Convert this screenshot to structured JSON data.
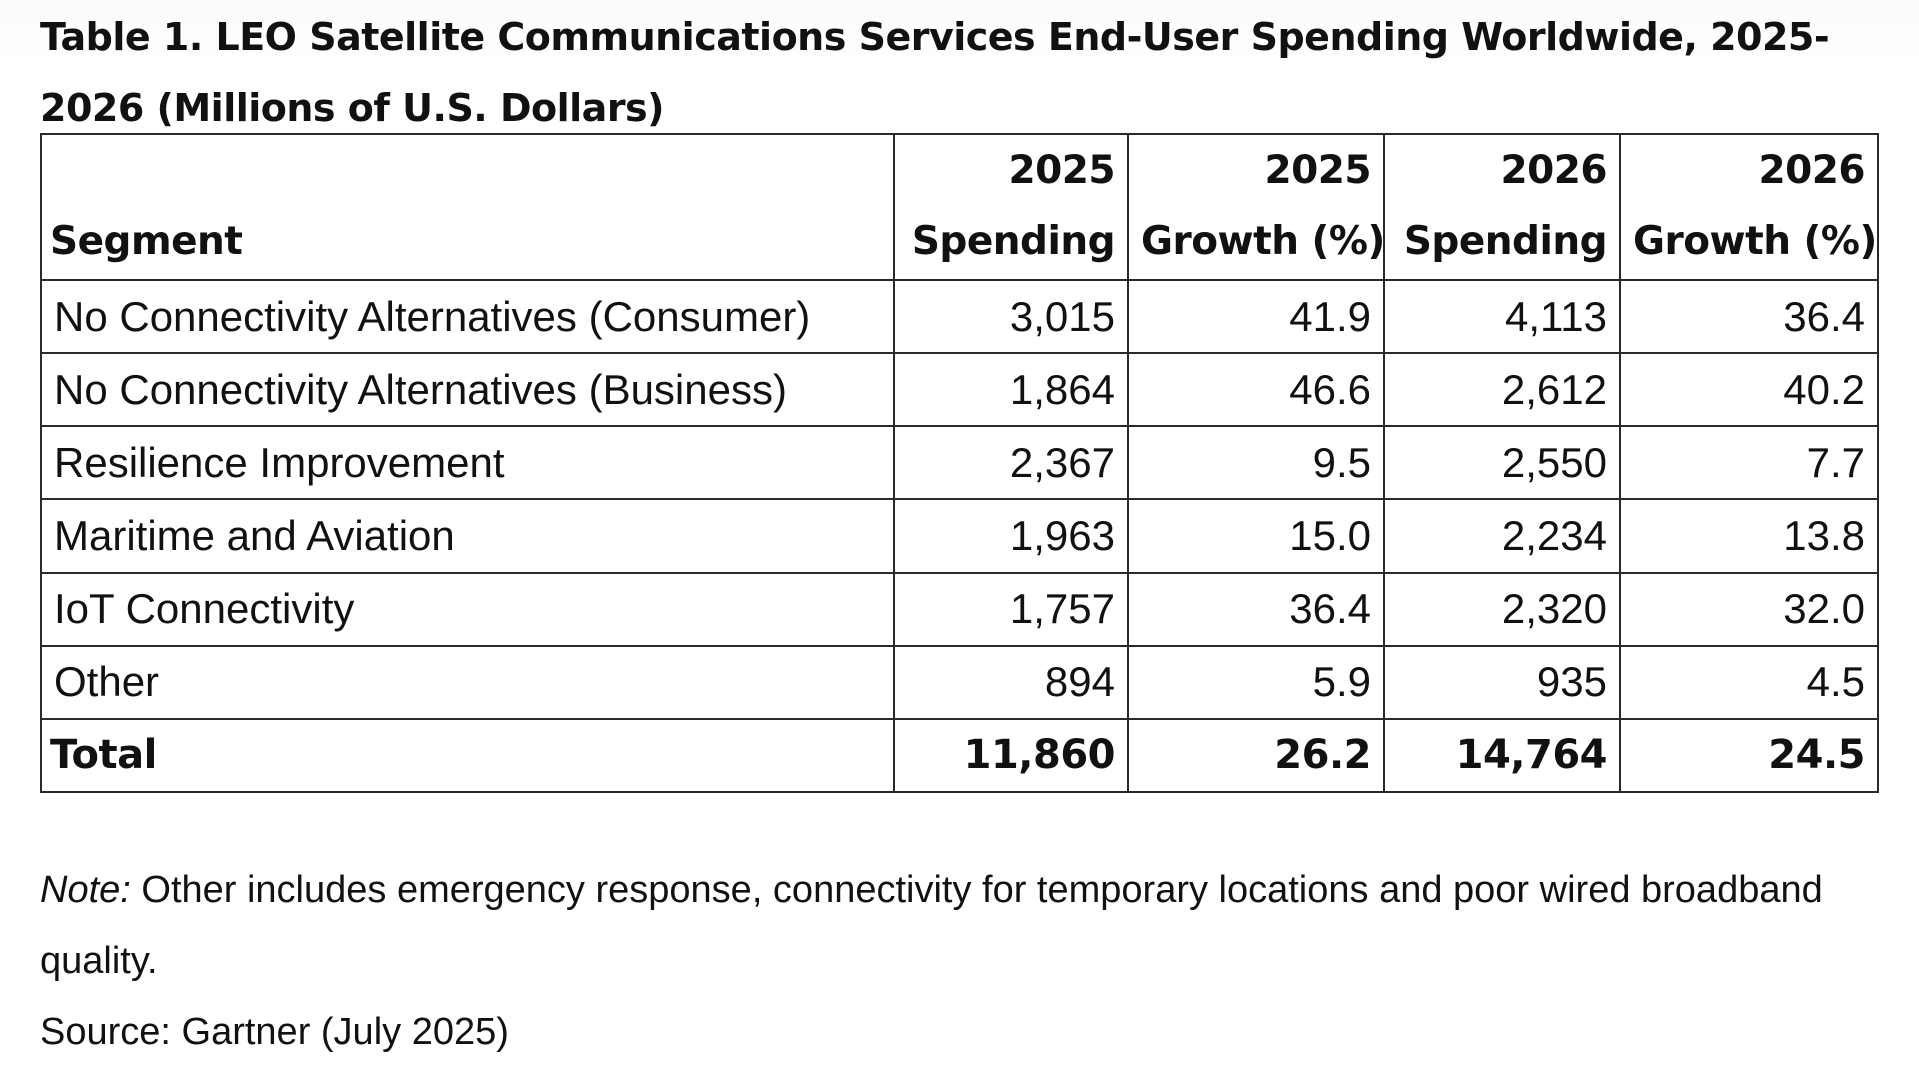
{
  "title": "Table 1. LEO Satellite Communications Services End-User Spending Worldwide, 2025-2026 (Millions of U.S. Dollars)",
  "table": {
    "headers": [
      {
        "line1": "",
        "line2": "Segment"
      },
      {
        "line1": "2025",
        "line2": "Spending"
      },
      {
        "line1": "2025",
        "line2": "Growth (%)"
      },
      {
        "line1": "2026",
        "line2": "Spending"
      },
      {
        "line1": "2026",
        "line2": "Growth (%)"
      }
    ],
    "rows": [
      {
        "segment": "No Connectivity Alternatives (Consumer)",
        "spending_2025": "3,015",
        "growth_2025": "41.9",
        "spending_2026": "4,113",
        "growth_2026": "36.4"
      },
      {
        "segment": "No Connectivity Alternatives (Business)",
        "spending_2025": "1,864",
        "growth_2025": "46.6",
        "spending_2026": "2,612",
        "growth_2026": "40.2"
      },
      {
        "segment": "Resilience Improvement",
        "spending_2025": "2,367",
        "growth_2025": "9.5",
        "spending_2026": "2,550",
        "growth_2026": "7.7"
      },
      {
        "segment": "Maritime and Aviation",
        "spending_2025": "1,963",
        "growth_2025": "15.0",
        "spending_2026": "2,234",
        "growth_2026": "13.8"
      },
      {
        "segment": "IoT Connectivity",
        "spending_2025": "1,757",
        "growth_2025": "36.4",
        "spending_2026": "2,320",
        "growth_2026": "32.0"
      },
      {
        "segment": "Other",
        "spending_2025": "894",
        "growth_2025": "5.9",
        "spending_2026": "935",
        "growth_2026": "4.5"
      }
    ],
    "total": {
      "segment": "Total",
      "spending_2025": "11,860",
      "growth_2025": "26.2",
      "spending_2026": "14,764",
      "growth_2026": "24.5"
    }
  },
  "note": {
    "label": "Note:",
    "text": " Other includes emergency response, connectivity for temporary locations and poor wired broadband quality."
  },
  "source": "Source: Gartner (July 2025)"
}
